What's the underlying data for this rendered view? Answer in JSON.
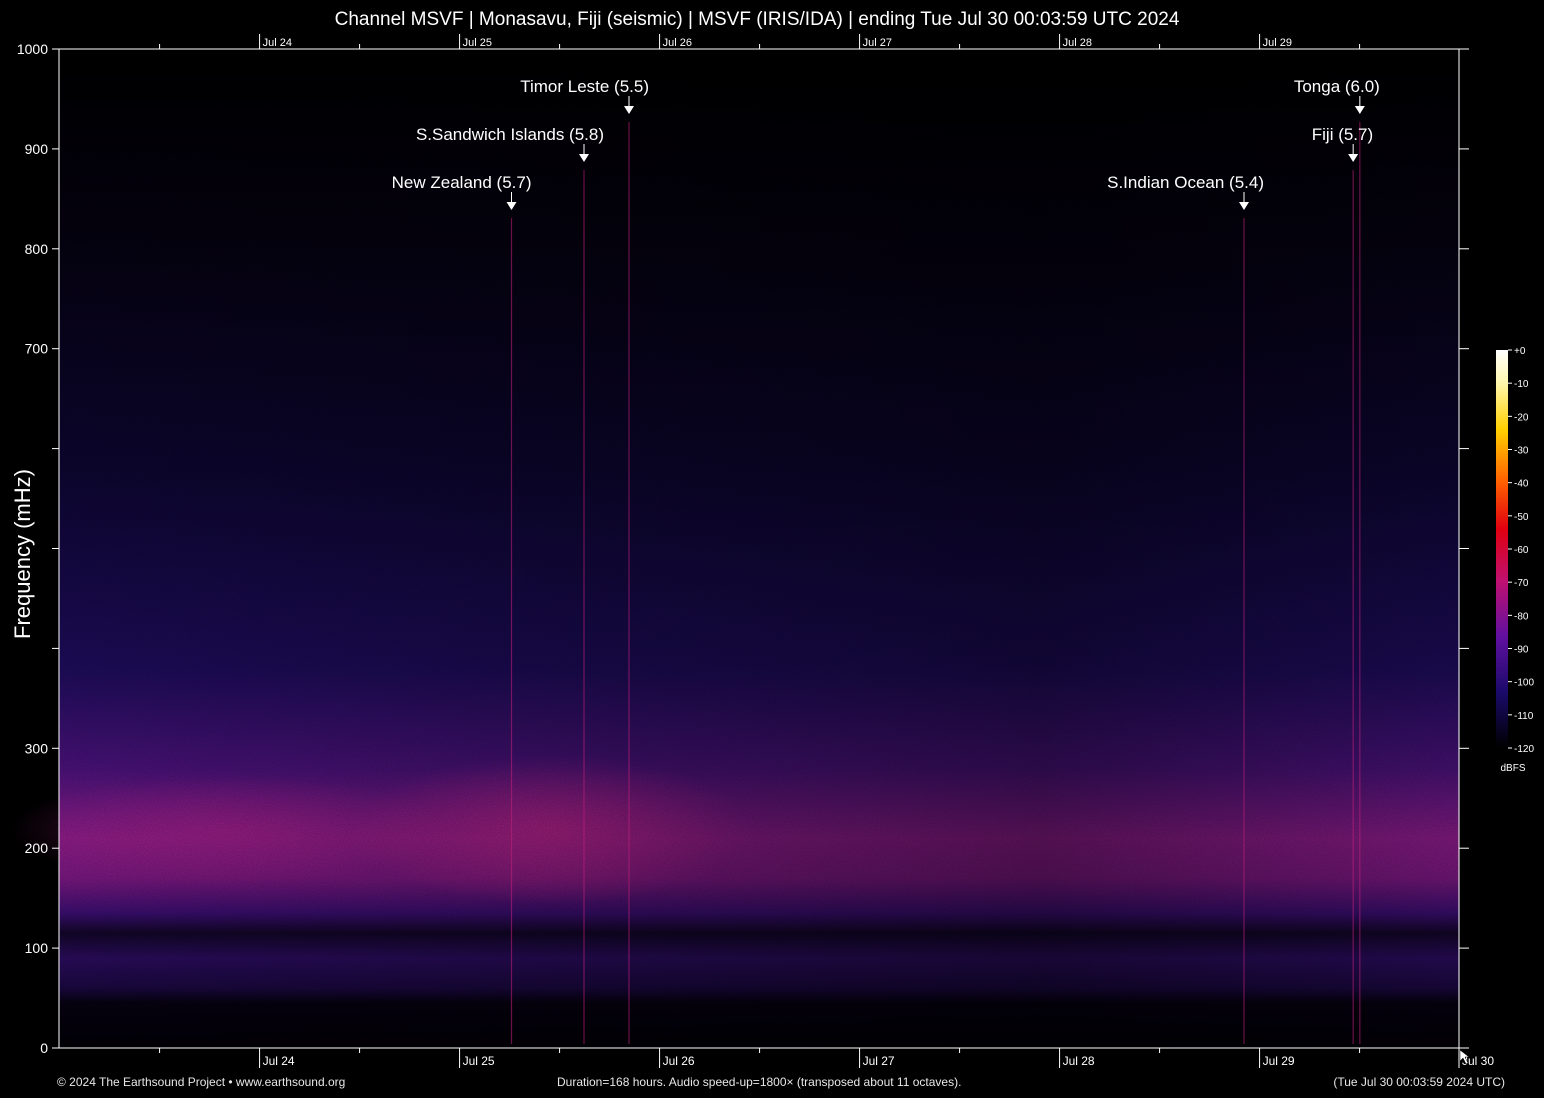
{
  "title": "Channel MSVF | Monasavu, Fiji (seismic) | MSVF (IRIS/IDA) | ending Tue Jul 30 00:03:59 UTC 2024",
  "footer": {
    "left": "© 2024 The Earthsound Project • www.earthsound.org",
    "middle": "Duration=168 hours. Audio speed-up=1800× (transposed about 11 octaves).",
    "right": "(Tue Jul 30 00:03:59 2024 UTC)"
  },
  "colors": {
    "background": "#000000",
    "noise_band": "#b0208c",
    "low_noise": "#2a0a6a",
    "event_line": "#c0207a",
    "axis": "#ffffff"
  },
  "chart_data": {
    "type": "heatmap",
    "title": "Channel MSVF | Monasavu, Fiji (seismic) | MSVF (IRIS/IDA) | ending Tue Jul 30 00:03:59 UTC 2024",
    "ylabel": "Frequency (mHz)",
    "xlabel": "",
    "ylim": [
      0,
      1000
    ],
    "y_ticks": [
      0,
      100,
      200,
      300,
      400,
      500,
      600,
      700,
      800,
      900,
      1000
    ],
    "y_tick_labels": [
      "0",
      "100",
      "200",
      "300",
      "",
      "",
      "",
      "700",
      "800",
      "900",
      "1000"
    ],
    "x_range_hours": [
      0,
      168
    ],
    "x_day_ticks": [
      {
        "label": "Jul 24",
        "hour": 24.07
      },
      {
        "label": "Jul 25",
        "hour": 48.07
      },
      {
        "label": "Jul 26",
        "hour": 72.07
      },
      {
        "label": "Jul 27",
        "hour": 96.07
      },
      {
        "label": "Jul 28",
        "hour": 120.07
      },
      {
        "label": "Jul 29",
        "hour": 144.07
      },
      {
        "label": "Jul 30",
        "hour": 168.0
      }
    ],
    "x_minor_tick_hours": [
      12.07,
      36.07,
      60.07,
      84.07,
      108.07,
      132.07,
      156.07
    ],
    "top_axis_labels": [
      "Jul 24",
      "Jul 25",
      "Jul 26",
      "Jul 27",
      "Jul 28",
      "Jul 29"
    ],
    "colorbar": {
      "unit": "dBFS",
      "range": [
        -120,
        0
      ],
      "ticks": [
        "+0",
        "-10",
        "-20",
        "-30",
        "-40",
        "-50",
        "-60",
        "-70",
        "-80",
        "-90",
        "-100",
        "-110",
        "-120"
      ]
    },
    "events": [
      {
        "label": "New Zealand (5.7)",
        "hour": 54.3,
        "label_row": 3
      },
      {
        "label": "S.Sandwich Islands (5.8)",
        "hour": 63.0,
        "label_row": 2
      },
      {
        "label": "Timor Leste (5.5)",
        "hour": 68.4,
        "label_row": 1
      },
      {
        "label": "S.Indian Ocean (5.4)",
        "hour": 142.2,
        "label_row": 3
      },
      {
        "label": "Fiji (5.7)",
        "hour": 155.3,
        "label_row": 2
      },
      {
        "label": "Tonga (6.0)",
        "hour": 156.1,
        "label_row": 1
      }
    ]
  }
}
